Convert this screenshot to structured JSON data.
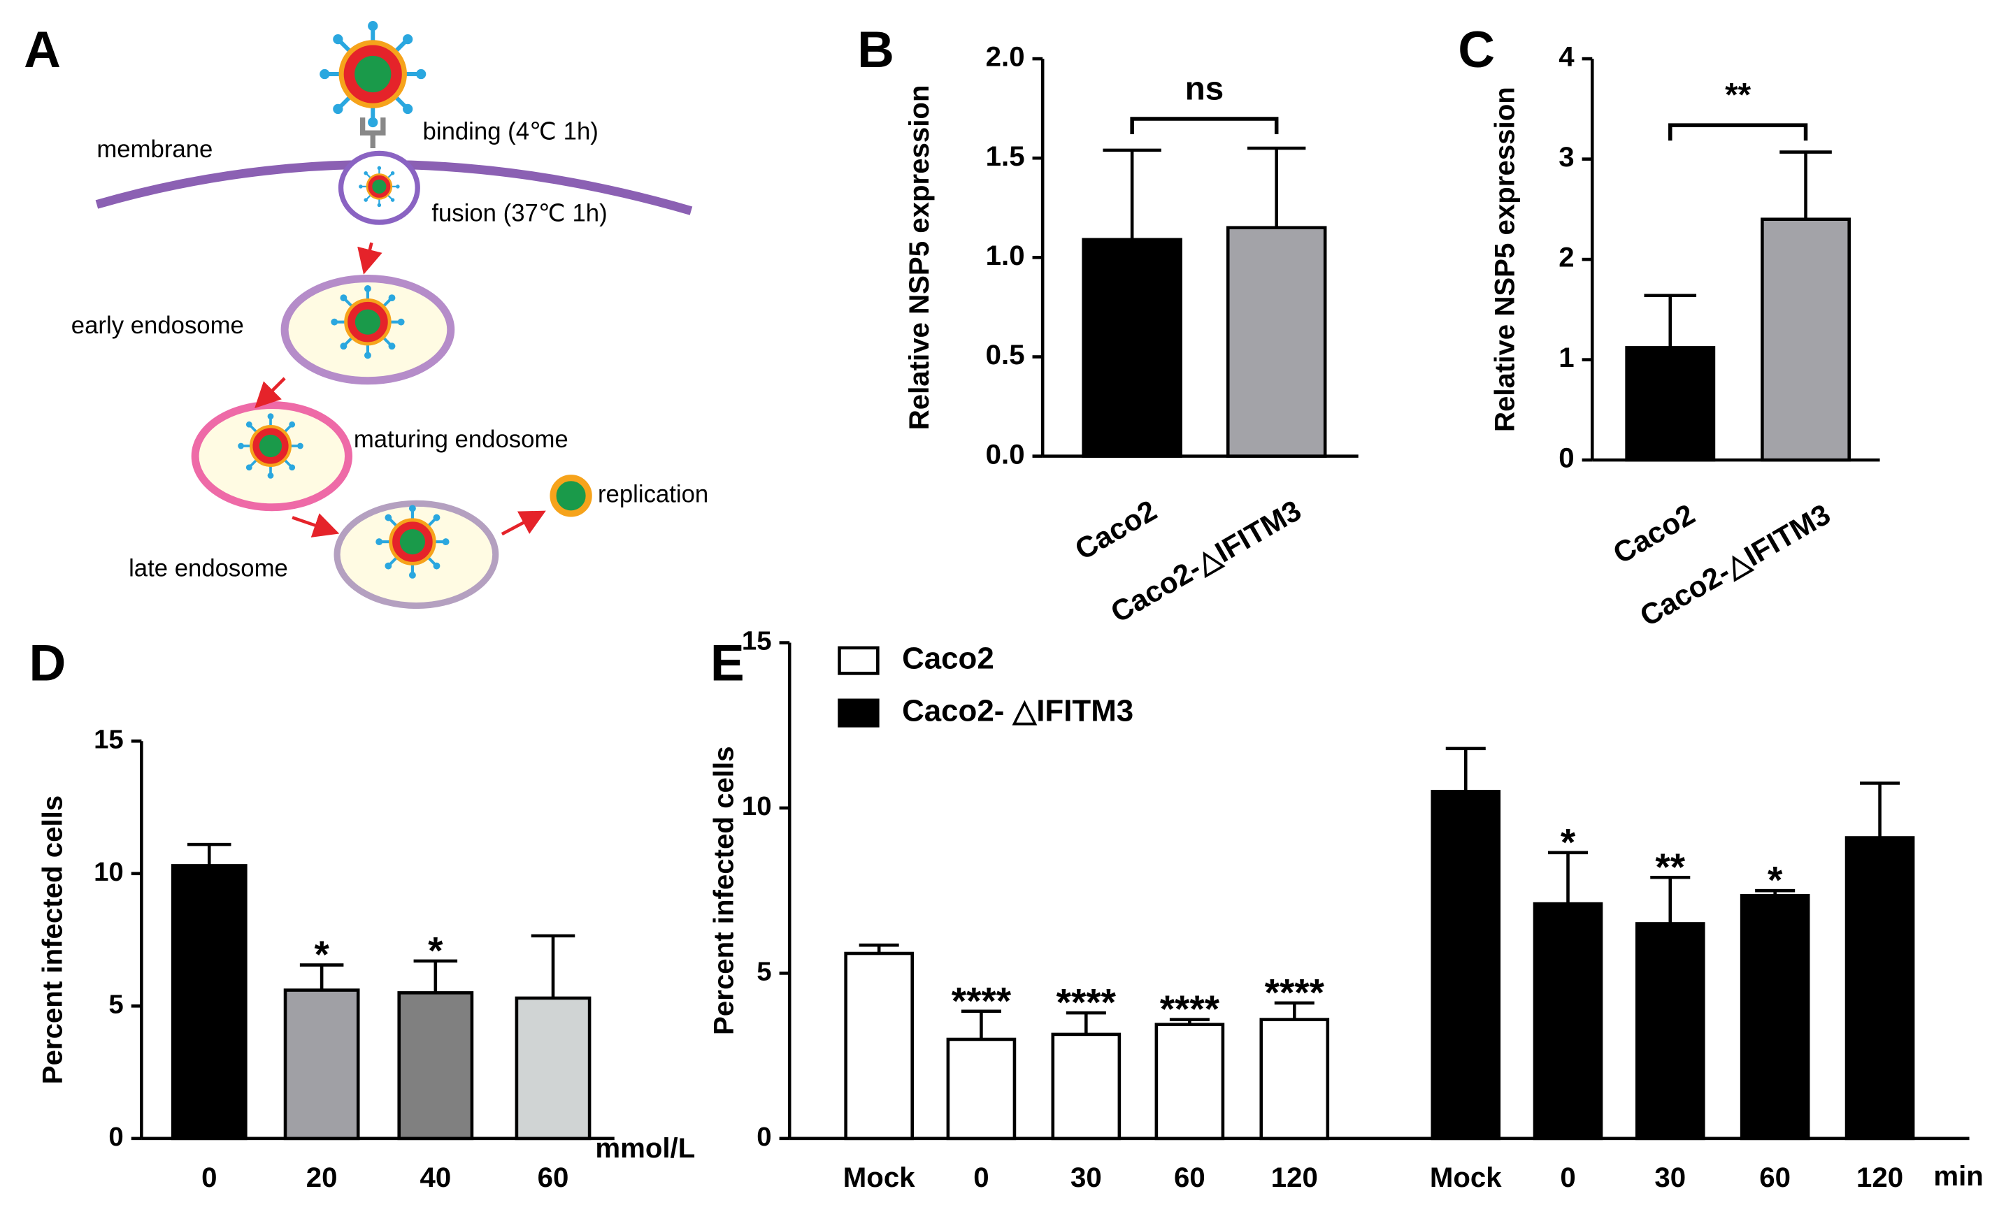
{
  "diagram": {
    "panel": "A",
    "membrane": "membrane",
    "binding": "binding (4℃ 1h)",
    "fusion": "fusion (37℃ 1h)",
    "early": "early endosome",
    "maturing": "maturing endosome",
    "late": "late endosome",
    "replication": "replication"
  },
  "chart_data": [
    {
      "type": "bar",
      "panel": "B",
      "ylabel": "Relative NSP5 expression",
      "categories": [
        "Caco2",
        "Caco2-△IFITM3"
      ],
      "values": [
        1.09,
        1.15
      ],
      "errors": [
        0.45,
        0.4
      ],
      "colors": [
        "#000000",
        "#a3a3a8"
      ],
      "comparison": "ns",
      "ylim": [
        0,
        2
      ],
      "yticks": [
        {
          "value": 0,
          "label": "0.0"
        },
        0.5,
        {
          "value": 1,
          "label": "1.0"
        },
        1.5,
        {
          "value": 2,
          "label": "2.0"
        }
      ]
    },
    {
      "type": "bar",
      "panel": "C",
      "ylabel": "Relative NSP5 expression",
      "categories": [
        "Caco2",
        "Caco2-△IFITM3"
      ],
      "values": [
        1.12,
        2.4
      ],
      "errors": [
        0.52,
        0.67
      ],
      "colors": [
        "#000000",
        "#a3a3a8"
      ],
      "comparison": "**",
      "ylim": [
        0,
        4
      ],
      "yticks": [
        0,
        1,
        2,
        3,
        4
      ]
    },
    {
      "type": "bar",
      "panel": "D",
      "ylabel": "Percent infected cells",
      "categories": [
        "0",
        "20",
        "40",
        "60"
      ],
      "x_unit": "mmol/L",
      "values": [
        10.3,
        5.6,
        5.5,
        5.3
      ],
      "errors": [
        0.8,
        0.95,
        1.2,
        2.35
      ],
      "colors": [
        "#000000",
        "#a0a0a5",
        "#808080",
        "#d0d4d4"
      ],
      "annotations": [
        null,
        "*",
        "*",
        null
      ],
      "ylim": [
        0,
        15
      ],
      "yticks": [
        0,
        5,
        10,
        15
      ]
    },
    {
      "type": "grouped-bar",
      "panel": "E",
      "ylabel": "Percent infected cells",
      "categories": [
        "Mock",
        "0",
        "30",
        "60",
        "120"
      ],
      "x_unit": "min",
      "series": [
        {
          "name": "Caco2",
          "color": "#ffffff",
          "values": [
            5.6,
            3.0,
            3.15,
            3.45,
            3.6
          ],
          "errors": [
            0.25,
            0.85,
            0.65,
            0.15,
            0.5
          ],
          "annotations": [
            null,
            "****",
            "****",
            "****",
            "****"
          ]
        },
        {
          "name": "Caco2- △IFITM3",
          "color": "#000000",
          "values": [
            10.5,
            7.1,
            6.5,
            7.35,
            9.1
          ],
          "errors": [
            1.3,
            1.55,
            1.4,
            0.15,
            1.65
          ],
          "annotations": [
            null,
            "*",
            "**",
            "*",
            null
          ]
        }
      ],
      "ylim": [
        0,
        15
      ],
      "yticks": [
        0,
        5,
        10,
        15
      ]
    }
  ]
}
